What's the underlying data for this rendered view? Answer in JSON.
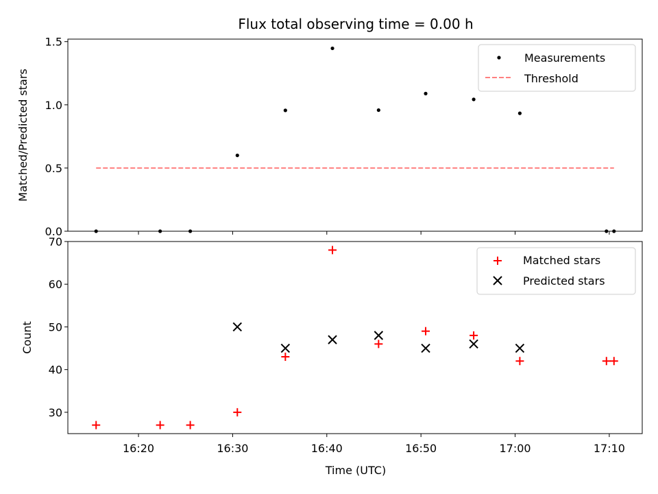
{
  "chart_data": [
    {
      "type": "scatter",
      "title": "Flux total observing time = 0.00 h",
      "xlabel": "",
      "ylabel": "Matched/Predicted stars",
      "ylim": [
        0,
        1.52
      ],
      "yticks": [
        "0.0",
        "0.5",
        "1.0",
        "1.5"
      ],
      "ytick_values": [
        0,
        0.5,
        1.0,
        1.5
      ],
      "xlim_minutes": [
        "16:12.5",
        "17:13.5"
      ],
      "legend_position": "top-right",
      "series": [
        {
          "name": "Measurements",
          "marker": "dot",
          "color": "#000000",
          "x": [
            "16:15.5",
            "16:22.3",
            "16:25.5",
            "16:30.5",
            "16:35.6",
            "16:40.6",
            "16:45.5",
            "16:50.5",
            "16:55.6",
            "17:00.5",
            "17:09.7",
            "17:10.5"
          ],
          "y": [
            0.0,
            0.0,
            0.0,
            0.6,
            0.956,
            1.447,
            0.958,
            1.089,
            1.043,
            0.933,
            0.0,
            0.0
          ]
        },
        {
          "name": "Threshold",
          "marker": "dashed-line",
          "color": "#ff7f7f",
          "x": [
            "16:15.5",
            "17:10.5"
          ],
          "y": [
            0.5,
            0.5
          ]
        }
      ]
    },
    {
      "type": "scatter",
      "title": "",
      "xlabel": "Time (UTC)",
      "ylabel": "Count",
      "ylim": [
        25,
        70
      ],
      "yticks": [
        "30",
        "40",
        "50",
        "60",
        "70"
      ],
      "ytick_values": [
        30,
        40,
        50,
        60,
        70
      ],
      "xticks": [
        "16:20",
        "16:30",
        "16:40",
        "16:50",
        "17:00",
        "17:10"
      ],
      "legend_position": "top-right",
      "series": [
        {
          "name": "Matched stars",
          "marker": "plus",
          "color": "#ff0000",
          "x": [
            "16:15.5",
            "16:22.3",
            "16:25.5",
            "16:30.5",
            "16:35.6",
            "16:40.6",
            "16:45.5",
            "16:50.5",
            "16:55.6",
            "17:00.5",
            "17:09.7",
            "17:10.5"
          ],
          "y": [
            27,
            27,
            27,
            30,
            43,
            68,
            46,
            49,
            48,
            42,
            42,
            42
          ]
        },
        {
          "name": "Predicted stars",
          "marker": "x",
          "color": "#000000",
          "x": [
            "16:30.5",
            "16:35.6",
            "16:40.6",
            "16:45.5",
            "16:50.5",
            "16:55.6",
            "17:00.5"
          ],
          "y": [
            50,
            45,
            47,
            48,
            45,
            46,
            45
          ]
        }
      ]
    }
  ]
}
